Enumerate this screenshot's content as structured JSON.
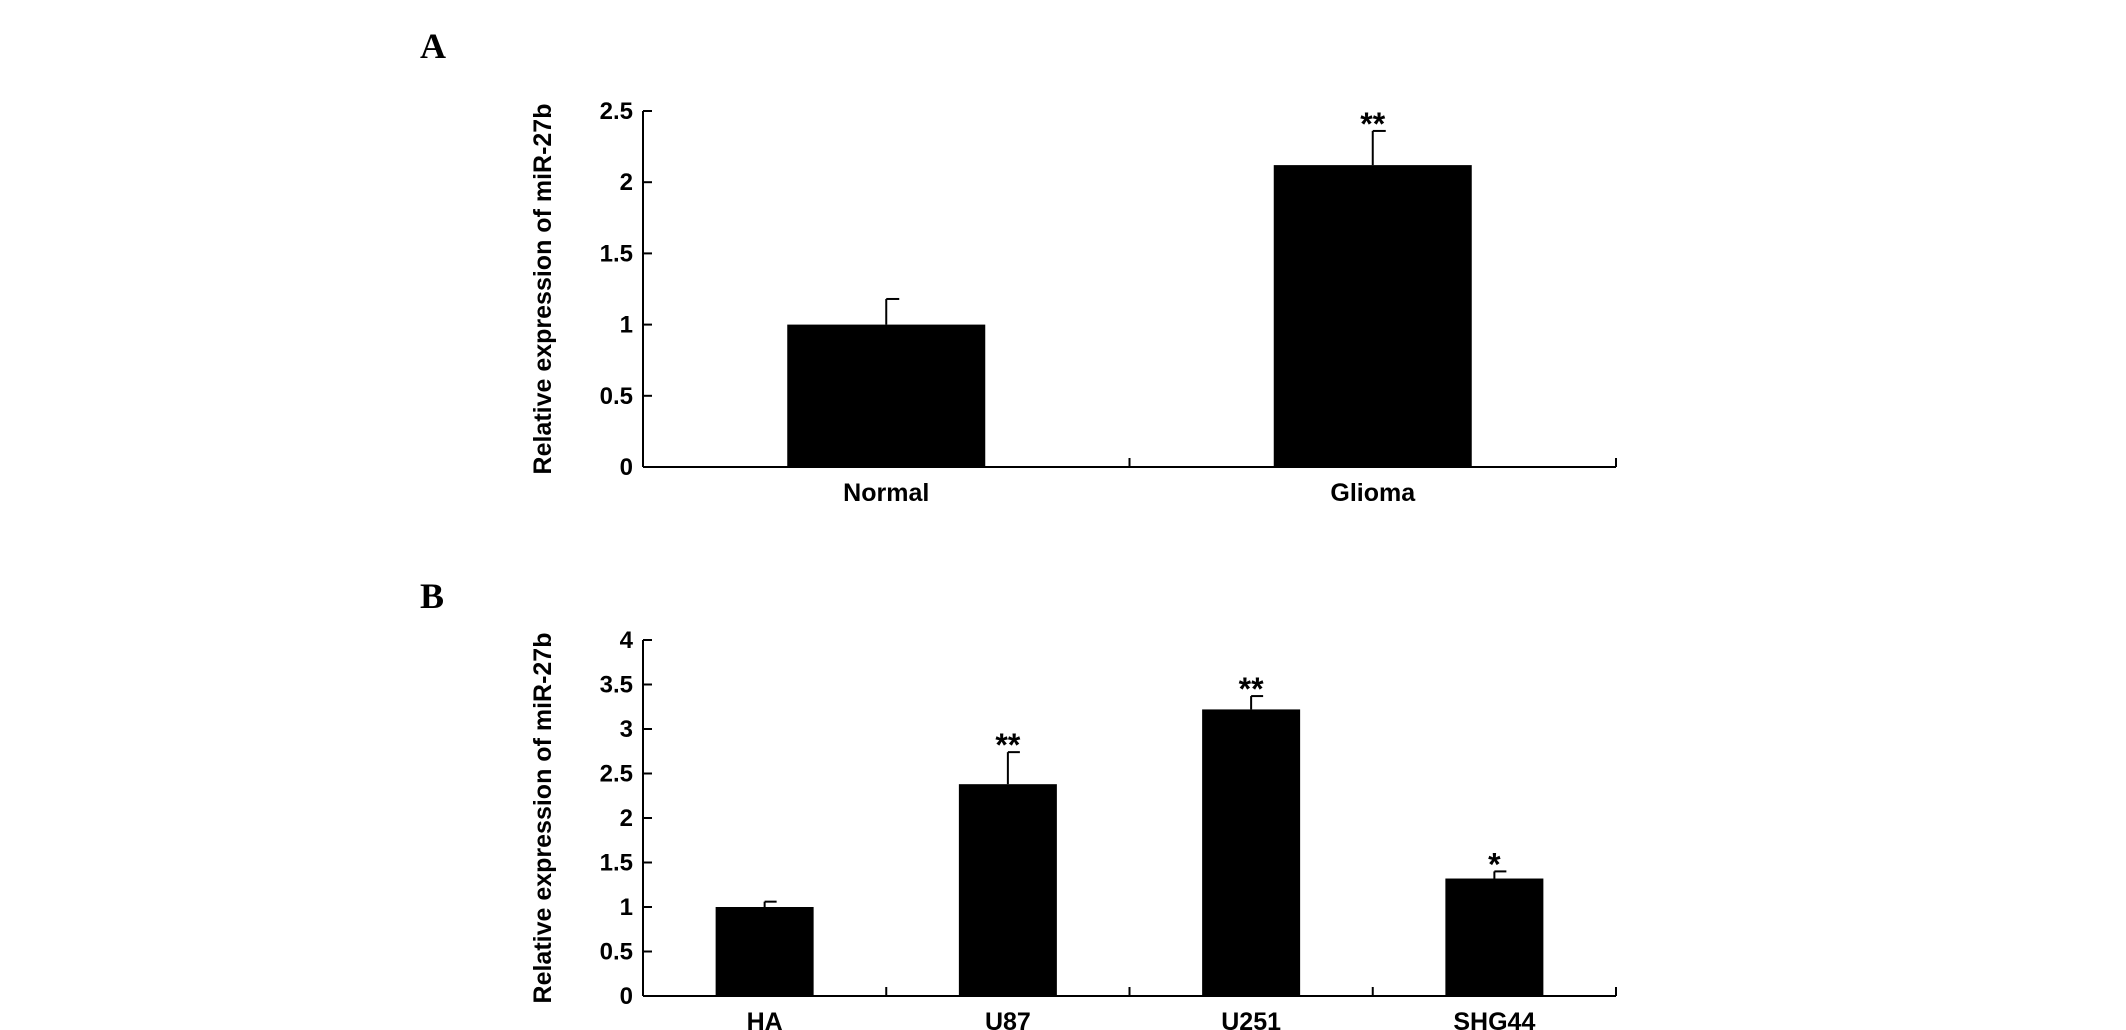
{
  "chart_data": [
    {
      "panel": "A",
      "type": "bar",
      "categories": [
        "Normal",
        "Glioma"
      ],
      "values": [
        1.0,
        2.12
      ],
      "errors": [
        0.18,
        0.24
      ],
      "significance": [
        "",
        "**"
      ],
      "ylabel": "Relative expression of miR-27b",
      "ylim": [
        0,
        2.5
      ],
      "yticks": [
        0,
        0.5,
        1,
        1.5,
        2,
        2.5
      ],
      "ytick_labels": [
        "0",
        "0.5",
        "1",
        "1.5",
        "2",
        "2.5"
      ],
      "bar_color": "#000000",
      "grid": false
    },
    {
      "panel": "B",
      "type": "bar",
      "categories": [
        "HA",
        "U87",
        "U251",
        "SHG44"
      ],
      "values": [
        1.0,
        2.38,
        3.22,
        1.32
      ],
      "errors": [
        0.06,
        0.36,
        0.15,
        0.08
      ],
      "significance": [
        "",
        "**",
        "**",
        "*"
      ],
      "ylabel": "Relative expression of miR-27b",
      "ylim": [
        0,
        4
      ],
      "yticks": [
        0,
        0.5,
        1,
        1.5,
        2,
        2.5,
        3,
        3.5,
        4
      ],
      "ytick_labels": [
        "0",
        "0.5",
        "1",
        "1.5",
        "2",
        "2.5",
        "3",
        "3.5",
        "4"
      ],
      "bar_color": "#000000",
      "grid": false
    }
  ]
}
